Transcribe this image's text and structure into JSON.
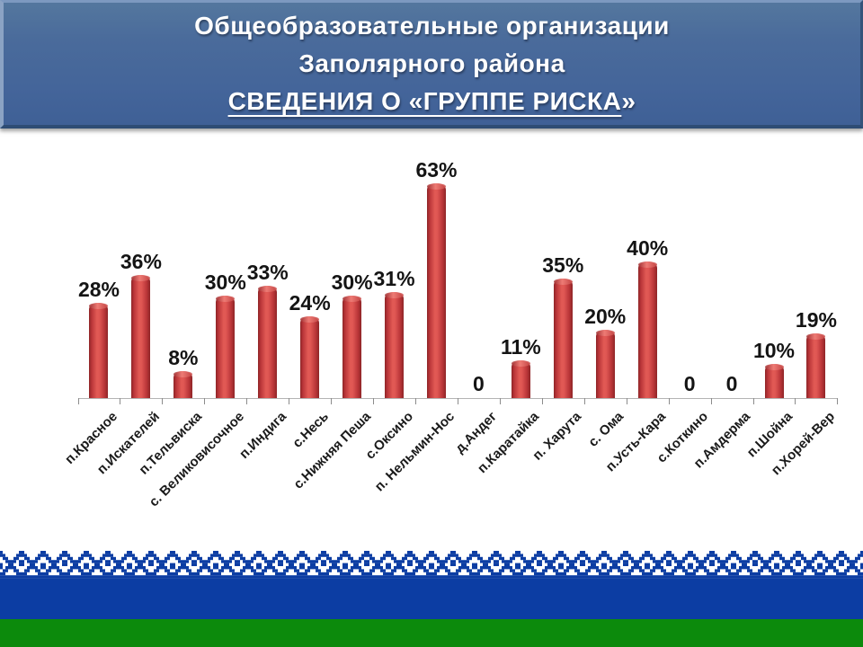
{
  "slide": {
    "title_line1": "Общеобразовательные организации",
    "title_line2": "Заполярного района",
    "title_line3_underlined": "СВЕДЕНИЯ О «ГРУППЕ РИСКА",
    "title_line3_tail": "»"
  },
  "chart_data": {
    "type": "bar",
    "title": "Общеобразовательные организации Заполярного района. Сведения о «группе риска»",
    "categories": [
      "п.Красное",
      "п.Искателей",
      "п.Тельвиска",
      "с. Великовисочное",
      "п.Индига",
      "с.Несь",
      "с.Нижняя Пеша",
      "с.Оксино",
      "п. Нельмин-Нос",
      "д.Андег",
      "п.Каратайка",
      "п. Харута",
      "с. Ома",
      "п.Усть-Кара",
      "с.Коткино",
      "п.Амдерма",
      "п.Шойна",
      "п.Хорей-Вер"
    ],
    "values": [
      28,
      36,
      8,
      30,
      33,
      24,
      30,
      31,
      63,
      0,
      11,
      35,
      20,
      40,
      0,
      0,
      10,
      19
    ],
    "labels": [
      "28%",
      "36%",
      "8%",
      "30%",
      "33%",
      "24%",
      "30%",
      "31%",
      "63%",
      "0",
      "11%",
      "35%",
      "20%",
      "40%",
      "0",
      "0",
      "10%",
      "19%"
    ],
    "xlabel": "",
    "ylabel": "",
    "ylim": [
      0,
      70
    ],
    "grid": false,
    "legend": "none",
    "bar_color_center": "#e25a55",
    "bar_color_edge": "#8e2527",
    "axis_color": "#b3b3b3",
    "value_label_color": "#141414"
  },
  "footer": {
    "flag_white": "#ffffff",
    "flag_blue": "#0c3da3",
    "flag_green": "#0c8a0c"
  }
}
